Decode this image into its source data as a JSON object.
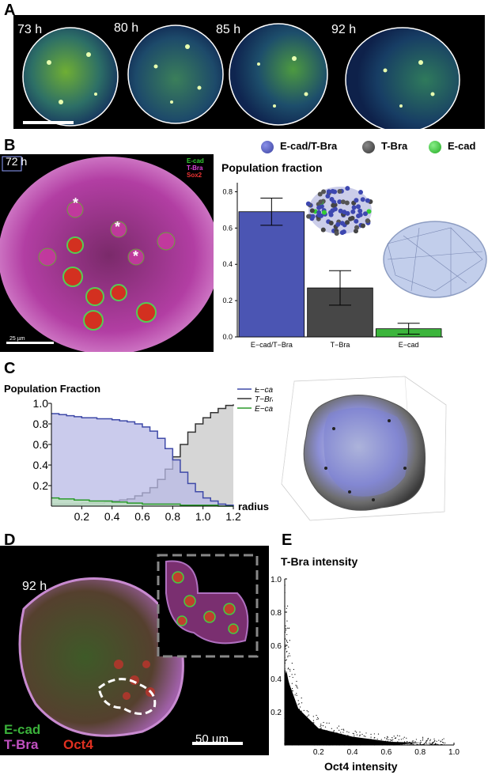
{
  "panels": {
    "a": {
      "label": "A",
      "timepoints": [
        "73 h",
        "80 h",
        "85 h",
        "92 h"
      ]
    },
    "b": {
      "label": "B",
      "time": "72 h",
      "stains": [
        "E-cad",
        "T-Bra",
        "Sox2"
      ],
      "scale_bar": "25 µm",
      "legend": [
        "E-cad/T-Bra",
        "T-Bra",
        "E-cad"
      ]
    },
    "c": {
      "label": "C"
    },
    "d": {
      "label": "D",
      "time": "92 h",
      "stains": [
        "E-cad",
        "T-Bra",
        "Oct4"
      ],
      "scale_bar": "50 µm"
    },
    "e": {
      "label": "E"
    }
  },
  "colors": {
    "ecad_tbra": "#4b55b3",
    "tbra": "#4a4a4a",
    "ecad": "#35b035"
  },
  "chart_data": [
    {
      "type": "bar",
      "title": "Population fraction",
      "categories": [
        "E−cad/T−Bra",
        "T−Bra",
        "E−cad"
      ],
      "values": [
        0.69,
        0.27,
        0.045
      ],
      "error": [
        0.075,
        0.095,
        0.03
      ],
      "ylim": [
        0,
        0.85
      ],
      "yticks": [
        "0.0",
        "0.2",
        "0.4",
        "0.6",
        "0.8"
      ],
      "colors": [
        "#4b55b3",
        "#474747",
        "#3cb53c"
      ]
    },
    {
      "type": "area",
      "ylabel": "Population Fraction",
      "xlabel": "radius",
      "xlim": [
        0,
        1.2
      ],
      "ylim": [
        0,
        1.0
      ],
      "xticks": [
        "0.2",
        "0.4",
        "0.6",
        "0.8",
        "1.0",
        "1.2"
      ],
      "yticks": [
        "0.2",
        "0.4",
        "0.6",
        "0.8",
        "1.0"
      ],
      "x": [
        0,
        0.05,
        0.1,
        0.15,
        0.2,
        0.25,
        0.3,
        0.35,
        0.4,
        0.45,
        0.5,
        0.55,
        0.6,
        0.65,
        0.7,
        0.75,
        0.8,
        0.85,
        0.9,
        0.95,
        1.0,
        1.05,
        1.1,
        1.15,
        1.2
      ],
      "series": [
        {
          "name": "E−cad/T−Bra",
          "values": [
            0.9,
            0.89,
            0.88,
            0.87,
            0.86,
            0.86,
            0.85,
            0.85,
            0.84,
            0.83,
            0.82,
            0.8,
            0.77,
            0.73,
            0.66,
            0.56,
            0.45,
            0.33,
            0.22,
            0.14,
            0.08,
            0.05,
            0.02,
            0.01,
            0.0
          ]
        },
        {
          "name": "T−Bra",
          "values": [
            0.02,
            0.02,
            0.02,
            0.02,
            0.03,
            0.03,
            0.03,
            0.04,
            0.05,
            0.06,
            0.07,
            0.1,
            0.13,
            0.18,
            0.26,
            0.36,
            0.48,
            0.6,
            0.72,
            0.8,
            0.86,
            0.91,
            0.95,
            0.98,
            0.99
          ]
        },
        {
          "name": "E−cad",
          "values": [
            0.08,
            0.07,
            0.07,
            0.06,
            0.06,
            0.05,
            0.05,
            0.05,
            0.04,
            0.04,
            0.03,
            0.03,
            0.02,
            0.02,
            0.02,
            0.02,
            0.02,
            0.01,
            0.01,
            0.01,
            0.01,
            0.01,
            0.0,
            0.0,
            0.0
          ]
        }
      ]
    },
    {
      "type": "scatter",
      "ylabel": "T-Bra intensity",
      "xlabel": "Oct4 intensity",
      "xlim": [
        0,
        1.0
      ],
      "ylim": [
        0,
        1.0
      ],
      "xticks": [
        "0.2",
        "0.4",
        "0.6",
        "0.8",
        "1.0"
      ],
      "yticks": [
        "0.2",
        "0.4",
        "0.6",
        "0.8",
        "1.0"
      ]
    }
  ]
}
